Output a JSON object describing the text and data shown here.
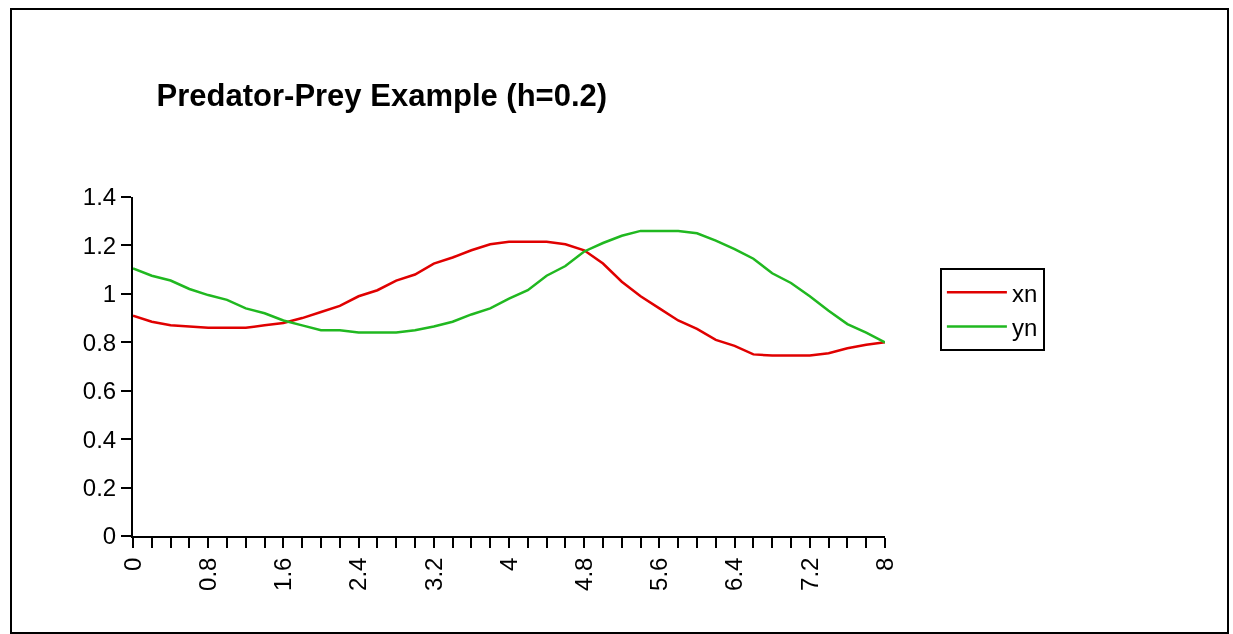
{
  "chart_data": {
    "type": "line",
    "title": "Predator-Prey Example (h=0.2)",
    "x": [
      0,
      0.2,
      0.4,
      0.6,
      0.8,
      1,
      1.2,
      1.4,
      1.6,
      1.8,
      2,
      2.2,
      2.4,
      2.6,
      2.8,
      3,
      3.2,
      3.4,
      3.6,
      3.8,
      4,
      4.2,
      4.4,
      4.6,
      4.8,
      5,
      5.2,
      5.4,
      5.6,
      5.8,
      6,
      6.2,
      6.4,
      6.6,
      6.8,
      7,
      7.2,
      7.4,
      7.6,
      7.8,
      8
    ],
    "series": [
      {
        "name": "xn",
        "color": "#e00000",
        "values": [
          0.91,
          0.885,
          0.87,
          0.865,
          0.86,
          0.86,
          0.86,
          0.87,
          0.88,
          0.9,
          0.925,
          0.95,
          0.99,
          1.015,
          1.055,
          1.08,
          1.125,
          1.15,
          1.18,
          1.205,
          1.215,
          1.215,
          1.215,
          1.205,
          1.18,
          1.125,
          1.05,
          0.99,
          0.94,
          0.89,
          0.855,
          0.81,
          0.785,
          0.75,
          0.745,
          0.745,
          0.745,
          0.755,
          0.775,
          0.79,
          0.8
        ]
      },
      {
        "name": "yn",
        "color": "#20b820",
        "values": [
          1.105,
          1.075,
          1.055,
          1.02,
          0.995,
          0.975,
          0.94,
          0.92,
          0.89,
          0.87,
          0.85,
          0.85,
          0.84,
          0.84,
          0.84,
          0.85,
          0.865,
          0.885,
          0.915,
          0.94,
          0.98,
          1.015,
          1.075,
          1.115,
          1.175,
          1.21,
          1.24,
          1.26,
          1.26,
          1.26,
          1.25,
          1.22,
          1.185,
          1.145,
          1.085,
          1.045,
          0.99,
          0.93,
          0.875,
          0.84,
          0.8
        ]
      }
    ],
    "xlim": [
      0,
      8
    ],
    "xticks": [
      0,
      {
        "value": 0.2,
        "label": null
      },
      {
        "value": 0.4,
        "label": null
      },
      {
        "value": 0.6,
        "label": null
      },
      0.8,
      {
        "value": 1,
        "label": null
      },
      {
        "value": 1.2,
        "label": null
      },
      {
        "value": 1.4,
        "label": null
      },
      1.6,
      {
        "value": 1.8,
        "label": null
      },
      {
        "value": 2,
        "label": null
      },
      {
        "value": 2.2,
        "label": null
      },
      2.4,
      {
        "value": 2.6,
        "label": null
      },
      {
        "value": 2.8,
        "label": null
      },
      {
        "value": 3,
        "label": null
      },
      3.2,
      {
        "value": 3.4,
        "label": null
      },
      {
        "value": 3.6,
        "label": null
      },
      {
        "value": 3.8,
        "label": null
      },
      4,
      {
        "value": 4.2,
        "label": null
      },
      {
        "value": 4.4,
        "label": null
      },
      {
        "value": 4.6,
        "label": null
      },
      4.8,
      {
        "value": 5,
        "label": null
      },
      {
        "value": 5.2,
        "label": null
      },
      {
        "value": 5.4,
        "label": null
      },
      5.6,
      {
        "value": 5.8,
        "label": null
      },
      {
        "value": 6,
        "label": null
      },
      {
        "value": 6.2,
        "label": null
      },
      6.4,
      {
        "value": 6.6,
        "label": null
      },
      {
        "value": 6.8,
        "label": null
      },
      {
        "value": 7,
        "label": null
      },
      7.2,
      {
        "value": 7.4,
        "label": null
      },
      {
        "value": 7.6,
        "label": null
      },
      {
        "value": 7.8,
        "label": null
      },
      8
    ],
    "ylim": [
      0,
      1.4
    ],
    "yticks": [
      0,
      0.2,
      0.4,
      0.6,
      0.8,
      1,
      1.2,
      1.4
    ],
    "grid": false,
    "legend": "right",
    "marker": "none",
    "line_style": "solid"
  }
}
